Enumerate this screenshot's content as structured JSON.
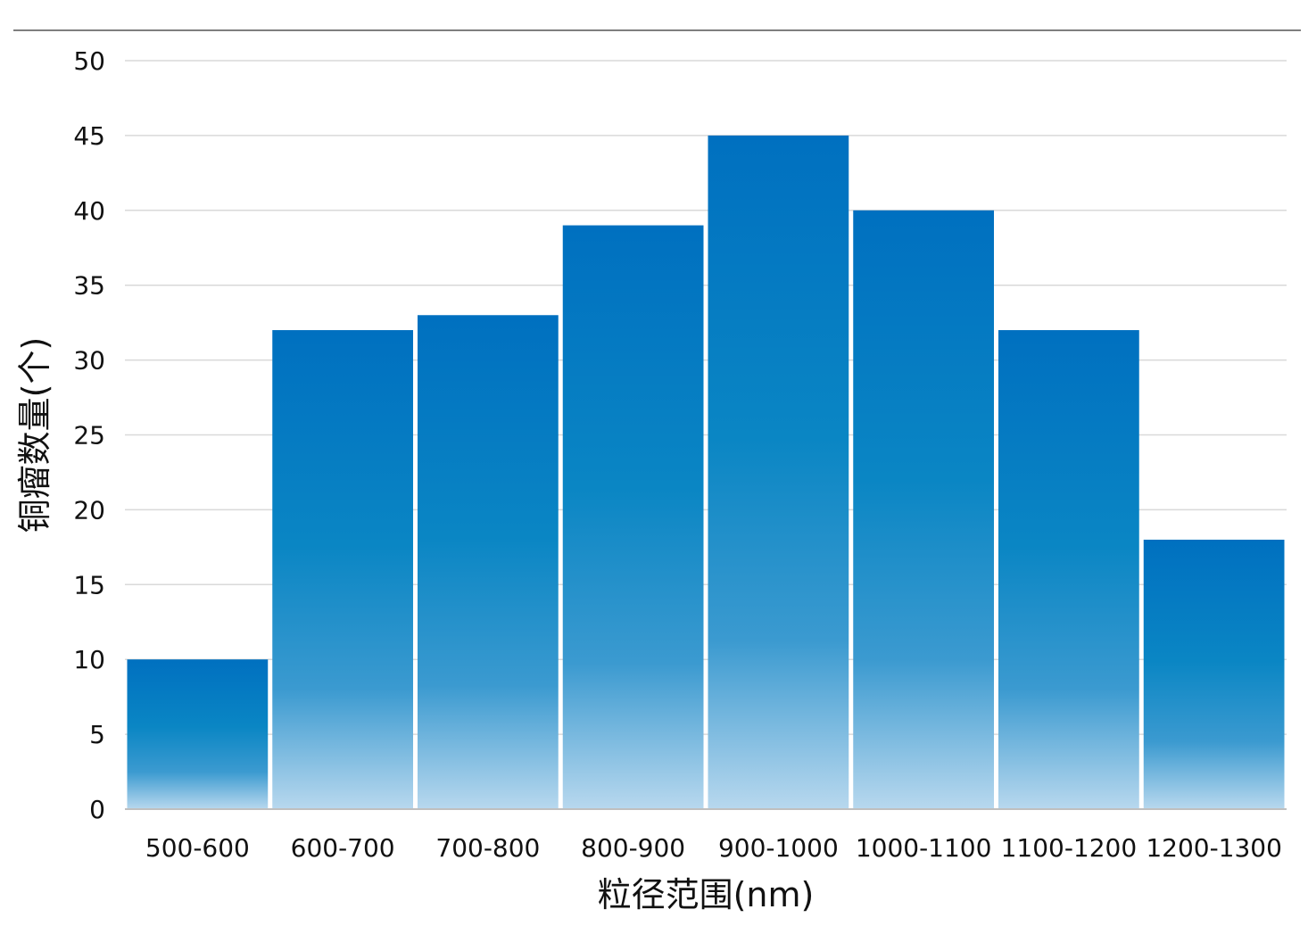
{
  "chart_data": {
    "type": "bar",
    "title": "",
    "xlabel": "粒径范围(nm)",
    "ylabel": "铜瘤数量(个)",
    "categories": [
      "500-600",
      "600-700",
      "700-800",
      "800-900",
      "900-1000",
      "1000-1100",
      "1100-1200",
      "1200-1300"
    ],
    "values": [
      10,
      32,
      33,
      39,
      45,
      40,
      32,
      18
    ],
    "ylim": [
      0,
      50
    ],
    "yticks": [
      "0",
      "5",
      "10",
      "15",
      "20",
      "25",
      "30",
      "35",
      "40",
      "45",
      "50"
    ],
    "grid": true,
    "legend": "none",
    "colors": {
      "bar_top": "#0070c0",
      "bar_mid": "#0a86c4",
      "bar_bottom": "#b8d8ee",
      "grid": "#d9d9d9",
      "axis": "#bfbfbf"
    }
  }
}
